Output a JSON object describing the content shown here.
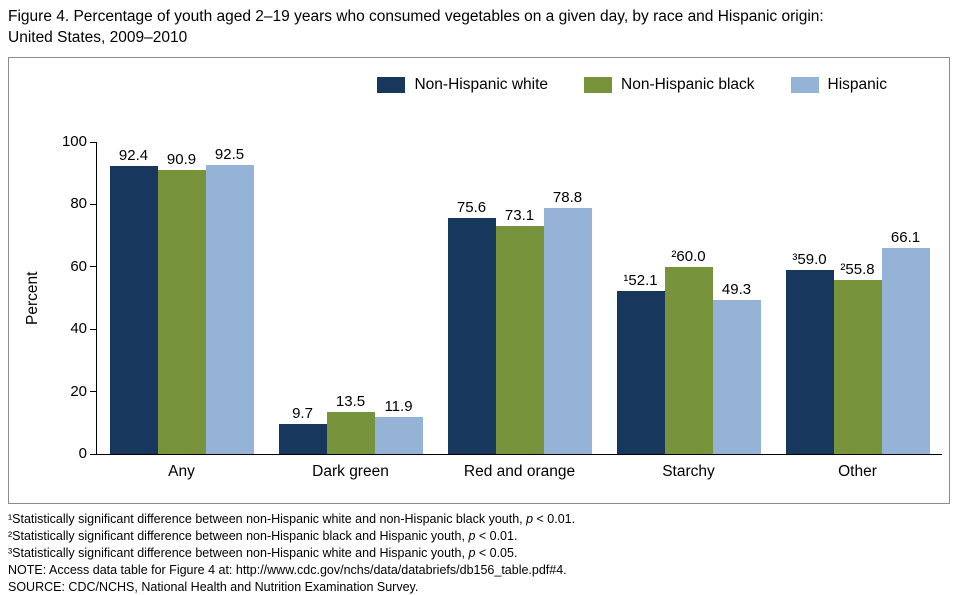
{
  "title_lines": [
    "Figure 4. Percentage of youth aged 2–19 years who consumed vegetables on a given day, by race and Hispanic origin:",
    "United States, 2009–2010"
  ],
  "chart_data": {
    "type": "bar",
    "categories": [
      "Any",
      "Dark green",
      "Red and orange",
      "Starchy",
      "Other"
    ],
    "series": [
      {
        "name": "Non-Hispanic white",
        "color": "#17375D",
        "values": [
          92.4,
          9.7,
          75.6,
          52.1,
          59.0
        ],
        "labels": [
          "92.4",
          "9.7",
          "75.6",
          "¹52.1",
          "³59.0"
        ]
      },
      {
        "name": "Non-Hispanic black",
        "color": "#77933C",
        "values": [
          90.9,
          13.5,
          73.1,
          60.0,
          55.8
        ],
        "labels": [
          "90.9",
          "13.5",
          "73.1",
          "²60.0",
          "²55.8"
        ]
      },
      {
        "name": "Hispanic",
        "color": "#95B3D7",
        "values": [
          92.5,
          11.9,
          78.8,
          49.3,
          66.1
        ],
        "labels": [
          "92.5",
          "11.9",
          "78.8",
          "49.3",
          "66.1"
        ]
      }
    ],
    "title": "Figure 4. Percentage of youth aged 2–19 years who consumed vegetables on a given day, by race and Hispanic origin: United States, 2009–2010",
    "xlabel": "",
    "ylabel": "Percent",
    "ylim": [
      0,
      100
    ],
    "yticks": [
      0,
      20,
      40,
      60,
      80,
      100
    ],
    "grid": false,
    "legend_position": "top-right"
  },
  "footnotes": [
    [
      {
        "t": "¹Statistically significant difference between non-Hispanic white and non-Hispanic black youth, "
      },
      {
        "t": "p",
        "i": true
      },
      {
        "t": " < 0.01."
      }
    ],
    [
      {
        "t": "²Statistically significant difference between non-Hispanic black and Hispanic youth, "
      },
      {
        "t": "p",
        "i": true
      },
      {
        "t": " < 0.01."
      }
    ],
    [
      {
        "t": "³Statistically significant difference between non-Hispanic white and Hispanic youth, "
      },
      {
        "t": "p",
        "i": true
      },
      {
        "t": " < 0.05."
      }
    ],
    [
      {
        "t": "NOTE: Access data table for Figure 4 at: http://www.cdc.gov/nchs/data/databriefs/db156_table.pdf#4."
      }
    ],
    [
      {
        "t": "SOURCE: CDC/NCHS, National Health and Nutrition Examination Survey."
      }
    ]
  ]
}
